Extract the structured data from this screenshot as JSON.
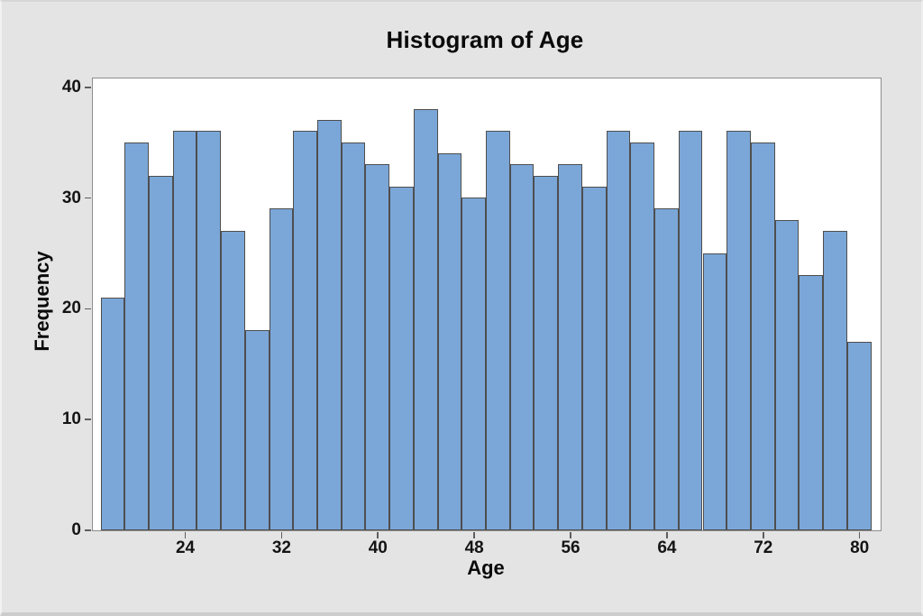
{
  "window": {
    "background_color": "#e4e4e4",
    "plot_background_color": "#ffffff",
    "frame_color": "#8d8d8d"
  },
  "chart_data": {
    "type": "bar",
    "title": "Histogram of Age",
    "xlabel": "Age",
    "ylabel": "Frequency",
    "bin_width": 2,
    "categories": [
      18,
      20,
      22,
      24,
      26,
      28,
      30,
      32,
      34,
      36,
      38,
      40,
      42,
      44,
      46,
      48,
      50,
      52,
      54,
      56,
      58,
      60,
      62,
      64,
      66,
      68,
      70,
      72,
      74,
      76,
      78,
      80
    ],
    "values": [
      21,
      35,
      32,
      36,
      36,
      27,
      18,
      29,
      36,
      37,
      35,
      33,
      31,
      38,
      34,
      30,
      36,
      33,
      32,
      33,
      31,
      36,
      35,
      29,
      36,
      25,
      36,
      35,
      28,
      23,
      27,
      17
    ],
    "x_tick_labels": [
      24,
      32,
      40,
      48,
      56,
      64,
      72,
      80
    ],
    "y_tick_labels": [
      0,
      10,
      20,
      30,
      40
    ],
    "ylim": [
      0,
      40.8
    ],
    "grid": "off",
    "legend": "none",
    "bar_fill_color": "#7ba7d8",
    "bar_border_color": "#4e4e4e"
  }
}
